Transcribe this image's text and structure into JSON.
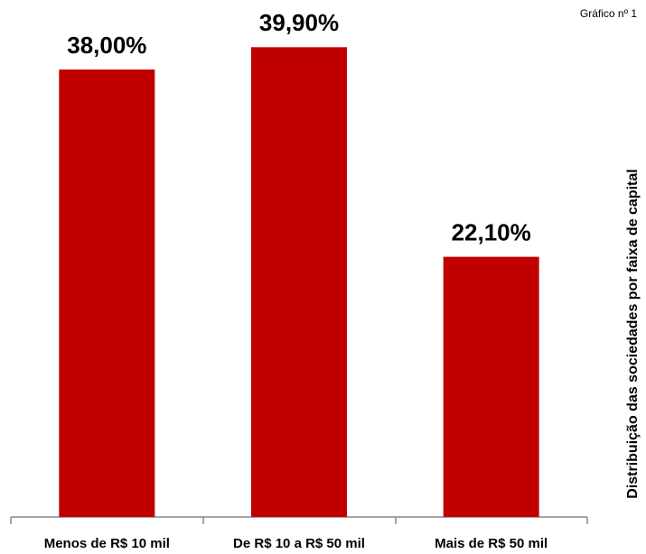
{
  "chart_data": {
    "type": "bar",
    "title": "Distribuição das sociedades por faixa de capital",
    "note": "Gráfico nº 1",
    "categories": [
      "Menos de R$ 10 mil",
      "De R$ 10 a R$ 50 mil",
      "Mais de R$ 50 mil"
    ],
    "values": [
      38.0,
      39.9,
      22.1
    ],
    "value_labels": [
      "38,00%",
      "39,90%",
      "22,10%"
    ],
    "color": "#c00000"
  }
}
